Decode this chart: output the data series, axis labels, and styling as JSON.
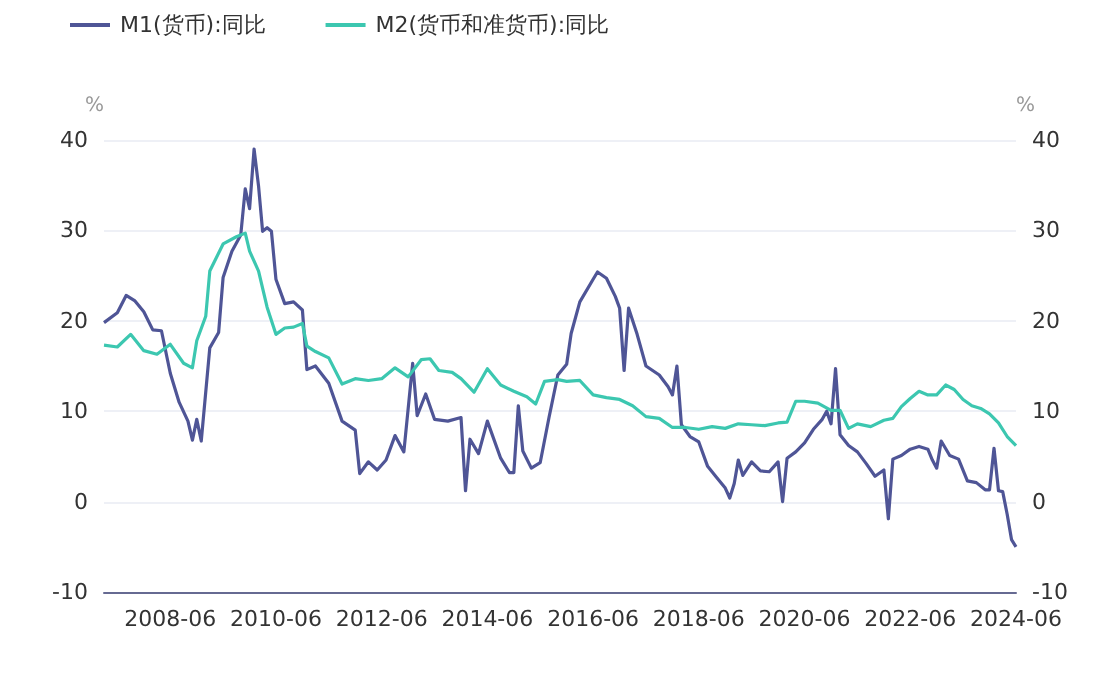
{
  "chart_data": {
    "type": "line",
    "ylabel": "%",
    "y2label": "%",
    "legend": "top left",
    "grid": "y",
    "marker": "none",
    "line_style": "solid",
    "xlim": [
      "2007-03",
      "2024-06"
    ],
    "xticks": [
      {
        "value": "2008-06",
        "label": "2008-06"
      },
      {
        "value": "2010-06",
        "label": "2010-06"
      },
      {
        "value": "2012-06",
        "label": "2012-06"
      },
      {
        "value": "2014-06",
        "label": "2014-06"
      },
      {
        "value": "2016-06",
        "label": "2016-06"
      },
      {
        "value": "2018-06",
        "label": "2018-06"
      },
      {
        "value": "2020-06",
        "label": "2020-06"
      },
      {
        "value": "2022-06",
        "label": "2022-06"
      },
      {
        "value": "2024-06",
        "label": "2024-06"
      }
    ],
    "ylim": [
      -10,
      40
    ],
    "yticks": [
      -10,
      0,
      10,
      20,
      30,
      40
    ],
    "y2lim": [
      -10,
      40
    ],
    "y2ticks": [
      -10,
      0,
      10,
      20,
      30,
      40
    ],
    "series": [
      {
        "name": "M1(货币):同比",
        "color": "#4f5596",
        "x": [
          "2007-03",
          "2007-06",
          "2007-08",
          "2007-10",
          "2007-12",
          "2008-02",
          "2008-04",
          "2008-06",
          "2008-08",
          "2008-10",
          "2008-11",
          "2008-12",
          "2009-01",
          "2009-03",
          "2009-05",
          "2009-06",
          "2009-08",
          "2009-10",
          "2009-11",
          "2009-12",
          "2010-01",
          "2010-02",
          "2010-03",
          "2010-04",
          "2010-05",
          "2010-06",
          "2010-08",
          "2010-10",
          "2010-12",
          "2011-01",
          "2011-03",
          "2011-06",
          "2011-09",
          "2011-12",
          "2012-01",
          "2012-03",
          "2012-05",
          "2012-07",
          "2012-09",
          "2012-11",
          "2013-01",
          "2013-02",
          "2013-04",
          "2013-06",
          "2013-09",
          "2013-12",
          "2014-01",
          "2014-02",
          "2014-04",
          "2014-06",
          "2014-09",
          "2014-11",
          "2014-12",
          "2015-01",
          "2015-02",
          "2015-04",
          "2015-06",
          "2015-08",
          "2015-10",
          "2015-12",
          "2016-01",
          "2016-03",
          "2016-06",
          "2016-07",
          "2016-09",
          "2016-11",
          "2016-12",
          "2017-01",
          "2017-02",
          "2017-04",
          "2017-06",
          "2017-09",
          "2017-11",
          "2017-12",
          "2018-01",
          "2018-02",
          "2018-04",
          "2018-06",
          "2018-08",
          "2018-10",
          "2018-12",
          "2019-01",
          "2019-02",
          "2019-03",
          "2019-04",
          "2019-06",
          "2019-08",
          "2019-10",
          "2019-12",
          "2020-01",
          "2020-02",
          "2020-04",
          "2020-06",
          "2020-08",
          "2020-10",
          "2020-11",
          "2020-12",
          "2021-01",
          "2021-02",
          "2021-04",
          "2021-06",
          "2021-08",
          "2021-10",
          "2021-12",
          "2022-01",
          "2022-02",
          "2022-04",
          "2022-06",
          "2022-08",
          "2022-10",
          "2022-11",
          "2022-12",
          "2023-01",
          "2023-03",
          "2023-05",
          "2023-07",
          "2023-09",
          "2023-11",
          "2023-12",
          "2024-01",
          "2024-02",
          "2024-03",
          "2024-04",
          "2024-05",
          "2024-06"
        ],
        "values": [
          19.8,
          20.9,
          22.8,
          22.2,
          21.0,
          19.0,
          18.9,
          14.2,
          11.0,
          8.9,
          6.8,
          9.1,
          6.7,
          17.0,
          18.7,
          24.8,
          27.7,
          29.5,
          34.6,
          32.4,
          39.0,
          34.9,
          29.9,
          30.3,
          29.9,
          24.6,
          21.9,
          22.1,
          21.2,
          14.6,
          15.0,
          13.1,
          8.9,
          7.9,
          3.1,
          4.4,
          3.5,
          4.6,
          7.3,
          5.5,
          15.3,
          9.5,
          11.9,
          9.1,
          8.9,
          9.3,
          1.2,
          6.9,
          5.3,
          8.9,
          4.8,
          3.2,
          3.2,
          10.6,
          5.6,
          3.7,
          4.3,
          9.3,
          14.0,
          15.2,
          18.6,
          22.1,
          24.6,
          25.4,
          24.7,
          22.7,
          21.4,
          14.5,
          21.4,
          18.5,
          15.0,
          14.0,
          12.7,
          11.8,
          15.0,
          8.5,
          7.2,
          6.6,
          3.9,
          2.7,
          1.5,
          0.4,
          2.0,
          4.6,
          2.9,
          4.4,
          3.4,
          3.3,
          4.4,
          0.0,
          4.8,
          5.5,
          6.5,
          8.0,
          9.1,
          10.0,
          8.6,
          14.7,
          7.4,
          6.2,
          5.5,
          4.2,
          2.8,
          3.5,
          -1.9,
          4.7,
          5.1,
          5.8,
          6.1,
          5.8,
          4.6,
          3.7,
          6.7,
          5.1,
          4.7,
          2.3,
          2.1,
          1.3,
          1.3,
          5.9,
          1.2,
          1.1,
          -1.4,
          -4.2,
          -5.0
        ]
      },
      {
        "name": "M2(货币和准货币):同比",
        "color": "#3cc7b0",
        "x": [
          "2007-03",
          "2007-06",
          "2007-09",
          "2007-12",
          "2008-03",
          "2008-06",
          "2008-09",
          "2008-11",
          "2008-12",
          "2009-02",
          "2009-03",
          "2009-06",
          "2009-09",
          "2009-11",
          "2009-12",
          "2010-02",
          "2010-04",
          "2010-06",
          "2010-08",
          "2010-10",
          "2010-12",
          "2011-01",
          "2011-03",
          "2011-06",
          "2011-09",
          "2011-12",
          "2012-03",
          "2012-06",
          "2012-09",
          "2012-12",
          "2013-03",
          "2013-05",
          "2013-07",
          "2013-10",
          "2013-12",
          "2014-03",
          "2014-06",
          "2014-09",
          "2014-12",
          "2015-03",
          "2015-05",
          "2015-07",
          "2015-10",
          "2015-12",
          "2016-03",
          "2016-06",
          "2016-09",
          "2016-12",
          "2017-03",
          "2017-06",
          "2017-09",
          "2017-12",
          "2018-03",
          "2018-06",
          "2018-09",
          "2018-12",
          "2019-03",
          "2019-06",
          "2019-09",
          "2019-12",
          "2020-02",
          "2020-04",
          "2020-06",
          "2020-09",
          "2020-12",
          "2021-02",
          "2021-04",
          "2021-06",
          "2021-09",
          "2021-12",
          "2022-02",
          "2022-04",
          "2022-06",
          "2022-08",
          "2022-10",
          "2022-12",
          "2023-02",
          "2023-04",
          "2023-06",
          "2023-08",
          "2023-10",
          "2023-12",
          "2024-02",
          "2024-04",
          "2024-06"
        ],
        "values": [
          17.3,
          17.1,
          18.5,
          16.7,
          16.3,
          17.4,
          15.3,
          14.8,
          17.8,
          20.5,
          25.5,
          28.5,
          29.3,
          29.7,
          27.7,
          25.5,
          21.5,
          18.5,
          19.2,
          19.3,
          19.7,
          17.2,
          16.6,
          15.9,
          13.0,
          13.6,
          13.4,
          13.6,
          14.8,
          13.8,
          15.7,
          15.8,
          14.5,
          14.3,
          13.6,
          12.1,
          14.7,
          12.9,
          12.2,
          11.6,
          10.8,
          13.3,
          13.5,
          13.3,
          13.4,
          11.8,
          11.5,
          11.3,
          10.6,
          9.4,
          9.2,
          8.2,
          8.2,
          8.0,
          8.3,
          8.1,
          8.6,
          8.5,
          8.4,
          8.7,
          8.8,
          11.1,
          11.1,
          10.9,
          10.1,
          10.1,
          8.1,
          8.6,
          8.3,
          9.0,
          9.2,
          10.5,
          11.4,
          12.2,
          11.8,
          11.8,
          12.9,
          12.4,
          11.3,
          10.6,
          10.3,
          9.7,
          8.7,
          7.2,
          6.2
        ]
      }
    ]
  }
}
